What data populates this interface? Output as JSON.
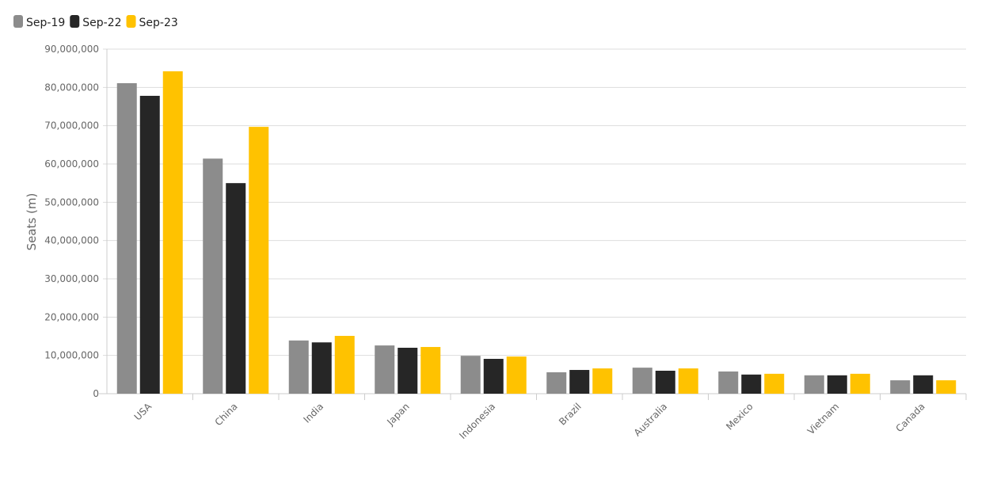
{
  "chart_data": {
    "type": "bar",
    "y_label": "Seats (m)",
    "categories": [
      "USA",
      "China",
      "India",
      "Japan",
      "Indonesia",
      "Brazil",
      "Australia",
      "Mexico",
      "Vietnam",
      "Canada"
    ],
    "series": [
      {
        "name": "Sep-19",
        "color": "#8c8c8c",
        "values": [
          81100000,
          61400000,
          13900000,
          12600000,
          9900000,
          5600000,
          6800000,
          5800000,
          4800000,
          3500000
        ]
      },
      {
        "name": "Sep-22",
        "color": "#262626",
        "values": [
          77800000,
          55000000,
          13400000,
          12000000,
          9100000,
          6200000,
          6000000,
          5000000,
          4800000,
          4800000
        ]
      },
      {
        "name": "Sep-23",
        "color": "#ffc200",
        "values": [
          84200000,
          69700000,
          15100000,
          12200000,
          9700000,
          6600000,
          6600000,
          5200000,
          5200000,
          3500000
        ]
      }
    ],
    "ylim": [
      0,
      90000000
    ],
    "yticks": [
      0,
      {
        "value": 10000000,
        "label": "10,000,000"
      },
      {
        "value": 20000000,
        "label": "20,000,000"
      },
      {
        "value": 30000000,
        "label": "30,000,000"
      },
      {
        "value": 40000000,
        "label": "40,000,000"
      },
      {
        "value": 50000000,
        "label": "50,000,000"
      },
      {
        "value": 60000000,
        "label": "60,000,000"
      },
      {
        "value": 70000000,
        "label": "70,000,000"
      },
      {
        "value": 80000000,
        "label": "80,000,000"
      },
      {
        "value": 90000000,
        "label": "90,000,000"
      }
    ],
    "grid": true,
    "legend": "top-left"
  }
}
